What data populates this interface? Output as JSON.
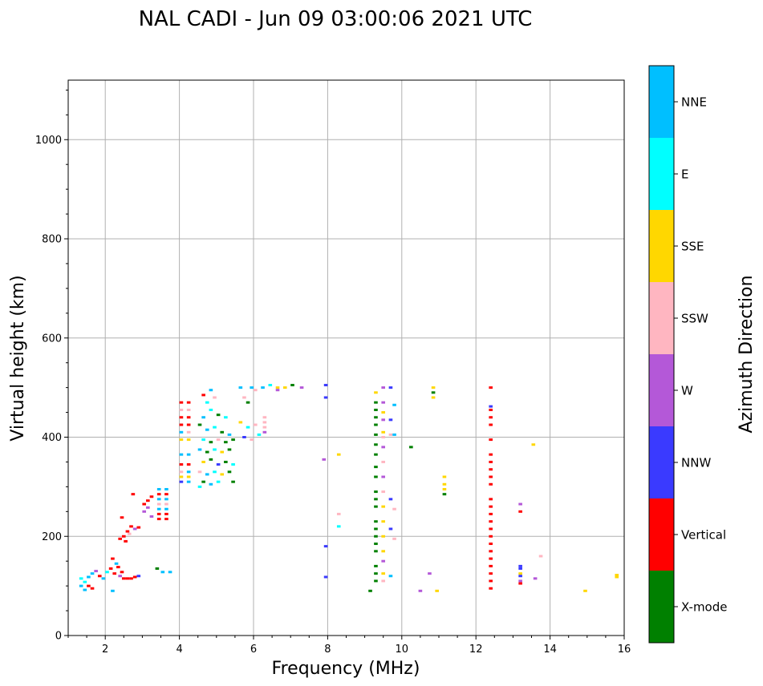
{
  "chart_data": {
    "type": "scatter",
    "title": "NAL CADI - Jun 09 03:00:06 2021 UTC",
    "xlabel": "Frequency (MHz)",
    "ylabel": "Virtual height (km)",
    "xlim": [
      1.0,
      16.0
    ],
    "ylim": [
      0,
      1120
    ],
    "xticks": [
      2,
      4,
      6,
      8,
      10,
      12,
      14,
      16
    ],
    "yticks": [
      0,
      200,
      400,
      600,
      800,
      1000
    ],
    "grid": true,
    "colorbar": {
      "label": "Azimuth Direction",
      "categories": [
        {
          "name": "X-mode",
          "color": "#008000"
        },
        {
          "name": "Vertical",
          "color": "#ff0000"
        },
        {
          "name": "NNW",
          "color": "#3a3aff"
        },
        {
          "name": "W",
          "color": "#b458d8"
        },
        {
          "name": "SSW",
          "color": "#ffb6c1"
        },
        {
          "name": "SSE",
          "color": "#ffd700"
        },
        {
          "name": "E",
          "color": "#00ffff"
        },
        {
          "name": "NNE",
          "color": "#00bfff"
        }
      ]
    },
    "echo_width_mhz": 0.1,
    "echoes": [
      {
        "f": 1.35,
        "h": 115,
        "dir": "E"
      },
      {
        "f": 1.35,
        "h": 100,
        "dir": "NNE"
      },
      {
        "f": 1.45,
        "h": 108,
        "dir": "E"
      },
      {
        "f": 1.45,
        "h": 92,
        "dir": "NNE"
      },
      {
        "f": 1.55,
        "h": 118,
        "dir": "NNE"
      },
      {
        "f": 1.55,
        "h": 100,
        "dir": "Vertical"
      },
      {
        "f": 1.65,
        "h": 125,
        "dir": "NNE"
      },
      {
        "f": 1.65,
        "h": 95,
        "dir": "Vertical"
      },
      {
        "f": 1.75,
        "h": 130,
        "dir": "W"
      },
      {
        "f": 1.85,
        "h": 120,
        "dir": "Vertical"
      },
      {
        "f": 1.95,
        "h": 115,
        "dir": "NNE"
      },
      {
        "f": 2.05,
        "h": 128,
        "dir": "E"
      },
      {
        "f": 2.15,
        "h": 135,
        "dir": "Vertical"
      },
      {
        "f": 2.2,
        "h": 155,
        "dir": "Vertical"
      },
      {
        "f": 2.25,
        "h": 125,
        "dir": "Vertical"
      },
      {
        "f": 2.3,
        "h": 145,
        "dir": "NNE"
      },
      {
        "f": 2.35,
        "h": 138,
        "dir": "Vertical"
      },
      {
        "f": 2.4,
        "h": 120,
        "dir": "W"
      },
      {
        "f": 2.45,
        "h": 128,
        "dir": "Vertical"
      },
      {
        "f": 2.5,
        "h": 115,
        "dir": "Vertical"
      },
      {
        "f": 2.6,
        "h": 115,
        "dir": "Vertical"
      },
      {
        "f": 2.7,
        "h": 115,
        "dir": "Vertical"
      },
      {
        "f": 2.8,
        "h": 118,
        "dir": "Vertical"
      },
      {
        "f": 2.9,
        "h": 120,
        "dir": "NNW"
      },
      {
        "f": 2.2,
        "h": 90,
        "dir": "NNE"
      },
      {
        "f": 2.4,
        "h": 195,
        "dir": "Vertical"
      },
      {
        "f": 2.5,
        "h": 200,
        "dir": "Vertical"
      },
      {
        "f": 2.55,
        "h": 190,
        "dir": "Vertical"
      },
      {
        "f": 2.6,
        "h": 210,
        "dir": "Vertical"
      },
      {
        "f": 2.65,
        "h": 205,
        "dir": "SSW"
      },
      {
        "f": 2.7,
        "h": 220,
        "dir": "Vertical"
      },
      {
        "f": 2.8,
        "h": 215,
        "dir": "W"
      },
      {
        "f": 2.9,
        "h": 218,
        "dir": "Vertical"
      },
      {
        "f": 2.45,
        "h": 238,
        "dir": "Vertical"
      },
      {
        "f": 2.75,
        "h": 285,
        "dir": "Vertical"
      },
      {
        "f": 3.05,
        "h": 250,
        "dir": "W"
      },
      {
        "f": 3.05,
        "h": 265,
        "dir": "Vertical"
      },
      {
        "f": 3.15,
        "h": 258,
        "dir": "W"
      },
      {
        "f": 3.15,
        "h": 272,
        "dir": "Vertical"
      },
      {
        "f": 3.25,
        "h": 240,
        "dir": "W"
      },
      {
        "f": 3.25,
        "h": 280,
        "dir": "Vertical"
      },
      {
        "f": 3.45,
        "h": 295,
        "dir": "NNE"
      },
      {
        "f": 3.45,
        "h": 285,
        "dir": "Vertical"
      },
      {
        "f": 3.45,
        "h": 275,
        "dir": "NNE"
      },
      {
        "f": 3.45,
        "h": 265,
        "dir": "SSW"
      },
      {
        "f": 3.45,
        "h": 255,
        "dir": "NNE"
      },
      {
        "f": 3.45,
        "h": 245,
        "dir": "Vertical"
      },
      {
        "f": 3.45,
        "h": 235,
        "dir": "Vertical"
      },
      {
        "f": 3.65,
        "h": 295,
        "dir": "NNE"
      },
      {
        "f": 3.65,
        "h": 285,
        "dir": "Vertical"
      },
      {
        "f": 3.65,
        "h": 275,
        "dir": "NNE"
      },
      {
        "f": 3.65,
        "h": 265,
        "dir": "SSW"
      },
      {
        "f": 3.65,
        "h": 255,
        "dir": "NNE"
      },
      {
        "f": 3.65,
        "h": 245,
        "dir": "Vertical"
      },
      {
        "f": 3.65,
        "h": 235,
        "dir": "Vertical"
      },
      {
        "f": 3.4,
        "h": 135,
        "dir": "X-mode"
      },
      {
        "f": 3.55,
        "h": 128,
        "dir": "NNE"
      },
      {
        "f": 3.75,
        "h": 128,
        "dir": "NNE"
      },
      {
        "f": 4.05,
        "h": 470,
        "dir": "Vertical"
      },
      {
        "f": 4.25,
        "h": 470,
        "dir": "Vertical"
      },
      {
        "f": 4.05,
        "h": 455,
        "dir": "SSW"
      },
      {
        "f": 4.25,
        "h": 455,
        "dir": "SSW"
      },
      {
        "f": 4.05,
        "h": 440,
        "dir": "Vertical"
      },
      {
        "f": 4.25,
        "h": 440,
        "dir": "Vertical"
      },
      {
        "f": 4.05,
        "h": 425,
        "dir": "Vertical"
      },
      {
        "f": 4.25,
        "h": 425,
        "dir": "Vertical"
      },
      {
        "f": 4.05,
        "h": 410,
        "dir": "NNE"
      },
      {
        "f": 4.25,
        "h": 410,
        "dir": "SSW"
      },
      {
        "f": 4.05,
        "h": 395,
        "dir": "SSE"
      },
      {
        "f": 4.25,
        "h": 395,
        "dir": "SSE"
      },
      {
        "f": 4.05,
        "h": 365,
        "dir": "NNE"
      },
      {
        "f": 4.25,
        "h": 365,
        "dir": "NNE"
      },
      {
        "f": 4.05,
        "h": 345,
        "dir": "Vertical"
      },
      {
        "f": 4.25,
        "h": 345,
        "dir": "Vertical"
      },
      {
        "f": 4.05,
        "h": 330,
        "dir": "SSW"
      },
      {
        "f": 4.25,
        "h": 330,
        "dir": "NNE"
      },
      {
        "f": 4.05,
        "h": 320,
        "dir": "SSE"
      },
      {
        "f": 4.25,
        "h": 320,
        "dir": "SSE"
      },
      {
        "f": 4.05,
        "h": 310,
        "dir": "NNW"
      },
      {
        "f": 4.25,
        "h": 310,
        "dir": "NNE"
      },
      {
        "f": 4.65,
        "h": 485,
        "dir": "Vertical"
      },
      {
        "f": 4.85,
        "h": 495,
        "dir": "NNE"
      },
      {
        "f": 4.75,
        "h": 470,
        "dir": "E"
      },
      {
        "f": 4.95,
        "h": 480,
        "dir": "SSW"
      },
      {
        "f": 4.65,
        "h": 440,
        "dir": "NNE"
      },
      {
        "f": 4.85,
        "h": 455,
        "dir": "E"
      },
      {
        "f": 5.05,
        "h": 445,
        "dir": "X-mode"
      },
      {
        "f": 5.25,
        "h": 440,
        "dir": "E"
      },
      {
        "f": 4.55,
        "h": 425,
        "dir": "X-mode"
      },
      {
        "f": 4.75,
        "h": 415,
        "dir": "NNE"
      },
      {
        "f": 4.95,
        "h": 420,
        "dir": "E"
      },
      {
        "f": 5.15,
        "h": 410,
        "dir": "X-mode"
      },
      {
        "f": 5.35,
        "h": 405,
        "dir": "NNE"
      },
      {
        "f": 4.65,
        "h": 395,
        "dir": "E"
      },
      {
        "f": 4.85,
        "h": 390,
        "dir": "X-mode"
      },
      {
        "f": 5.05,
        "h": 395,
        "dir": "SSW"
      },
      {
        "f": 5.25,
        "h": 390,
        "dir": "X-mode"
      },
      {
        "f": 5.45,
        "h": 395,
        "dir": "X-mode"
      },
      {
        "f": 4.55,
        "h": 375,
        "dir": "NNE"
      },
      {
        "f": 4.75,
        "h": 370,
        "dir": "X-mode"
      },
      {
        "f": 4.95,
        "h": 375,
        "dir": "E"
      },
      {
        "f": 5.15,
        "h": 370,
        "dir": "SSE"
      },
      {
        "f": 5.35,
        "h": 375,
        "dir": "X-mode"
      },
      {
        "f": 4.65,
        "h": 350,
        "dir": "SSE"
      },
      {
        "f": 4.85,
        "h": 355,
        "dir": "X-mode"
      },
      {
        "f": 5.05,
        "h": 345,
        "dir": "NNW"
      },
      {
        "f": 5.25,
        "h": 350,
        "dir": "X-mode"
      },
      {
        "f": 5.45,
        "h": 345,
        "dir": "E"
      },
      {
        "f": 4.55,
        "h": 330,
        "dir": "SSW"
      },
      {
        "f": 4.75,
        "h": 325,
        "dir": "NNE"
      },
      {
        "f": 4.95,
        "h": 330,
        "dir": "E"
      },
      {
        "f": 5.15,
        "h": 325,
        "dir": "SSE"
      },
      {
        "f": 5.35,
        "h": 330,
        "dir": "X-mode"
      },
      {
        "f": 4.65,
        "h": 310,
        "dir": "X-mode"
      },
      {
        "f": 4.85,
        "h": 305,
        "dir": "NNE"
      },
      {
        "f": 5.05,
        "h": 310,
        "dir": "E"
      },
      {
        "f": 5.45,
        "h": 310,
        "dir": "X-mode"
      },
      {
        "f": 4.55,
        "h": 300,
        "dir": "E"
      },
      {
        "f": 5.65,
        "h": 500,
        "dir": "NNE"
      },
      {
        "f": 5.95,
        "h": 500,
        "dir": "NNE"
      },
      {
        "f": 5.75,
        "h": 480,
        "dir": "SSW"
      },
      {
        "f": 5.85,
        "h": 470,
        "dir": "X-mode"
      },
      {
        "f": 6.05,
        "h": 495,
        "dir": "SSW"
      },
      {
        "f": 6.25,
        "h": 500,
        "dir": "NNE"
      },
      {
        "f": 6.45,
        "h": 505,
        "dir": "E"
      },
      {
        "f": 6.65,
        "h": 500,
        "dir": "SSE"
      },
      {
        "f": 6.85,
        "h": 500,
        "dir": "SSE"
      },
      {
        "f": 7.05,
        "h": 505,
        "dir": "X-mode"
      },
      {
        "f": 6.65,
        "h": 495,
        "dir": "W"
      },
      {
        "f": 7.3,
        "h": 500,
        "dir": "W"
      },
      {
        "f": 5.65,
        "h": 430,
        "dir": "SSE"
      },
      {
        "f": 5.85,
        "h": 420,
        "dir": "E"
      },
      {
        "f": 6.05,
        "h": 425,
        "dir": "SSW"
      },
      {
        "f": 6.3,
        "h": 440,
        "dir": "SSW"
      },
      {
        "f": 6.3,
        "h": 430,
        "dir": "SSW"
      },
      {
        "f": 6.3,
        "h": 420,
        "dir": "SSW"
      },
      {
        "f": 6.3,
        "h": 410,
        "dir": "W"
      },
      {
        "f": 5.75,
        "h": 400,
        "dir": "NNW"
      },
      {
        "f": 5.95,
        "h": 395,
        "dir": "SSW"
      },
      {
        "f": 6.15,
        "h": 405,
        "dir": "E"
      },
      {
        "f": 7.95,
        "h": 505,
        "dir": "NNW"
      },
      {
        "f": 7.95,
        "h": 480,
        "dir": "NNW"
      },
      {
        "f": 7.9,
        "h": 355,
        "dir": "W"
      },
      {
        "f": 7.95,
        "h": 180,
        "dir": "NNW"
      },
      {
        "f": 7.95,
        "h": 118,
        "dir": "NNW"
      },
      {
        "f": 8.3,
        "h": 365,
        "dir": "SSE"
      },
      {
        "f": 8.3,
        "h": 245,
        "dir": "SSW"
      },
      {
        "f": 8.3,
        "h": 220,
        "dir": "E"
      },
      {
        "f": 9.3,
        "h": 490,
        "dir": "SSE"
      },
      {
        "f": 9.3,
        "h": 470,
        "dir": "X-mode"
      },
      {
        "f": 9.3,
        "h": 455,
        "dir": "X-mode"
      },
      {
        "f": 9.3,
        "h": 440,
        "dir": "X-mode"
      },
      {
        "f": 9.3,
        "h": 425,
        "dir": "X-mode"
      },
      {
        "f": 9.3,
        "h": 405,
        "dir": "X-mode"
      },
      {
        "f": 9.3,
        "h": 385,
        "dir": "X-mode"
      },
      {
        "f": 9.3,
        "h": 365,
        "dir": "X-mode"
      },
      {
        "f": 9.3,
        "h": 340,
        "dir": "X-mode"
      },
      {
        "f": 9.3,
        "h": 320,
        "dir": "X-mode"
      },
      {
        "f": 9.3,
        "h": 290,
        "dir": "X-mode"
      },
      {
        "f": 9.3,
        "h": 275,
        "dir": "X-mode"
      },
      {
        "f": 9.3,
        "h": 260,
        "dir": "X-mode"
      },
      {
        "f": 9.3,
        "h": 230,
        "dir": "X-mode"
      },
      {
        "f": 9.3,
        "h": 215,
        "dir": "X-mode"
      },
      {
        "f": 9.3,
        "h": 200,
        "dir": "X-mode"
      },
      {
        "f": 9.3,
        "h": 185,
        "dir": "X-mode"
      },
      {
        "f": 9.3,
        "h": 170,
        "dir": "X-mode"
      },
      {
        "f": 9.3,
        "h": 140,
        "dir": "X-mode"
      },
      {
        "f": 9.3,
        "h": 125,
        "dir": "X-mode"
      },
      {
        "f": 9.3,
        "h": 110,
        "dir": "X-mode"
      },
      {
        "f": 9.15,
        "h": 90,
        "dir": "X-mode"
      },
      {
        "f": 9.5,
        "h": 500,
        "dir": "W"
      },
      {
        "f": 9.5,
        "h": 470,
        "dir": "W"
      },
      {
        "f": 9.5,
        "h": 450,
        "dir": "SSE"
      },
      {
        "f": 9.5,
        "h": 435,
        "dir": "W"
      },
      {
        "f": 9.5,
        "h": 410,
        "dir": "SSE"
      },
      {
        "f": 9.5,
        "h": 400,
        "dir": "SSW"
      },
      {
        "f": 9.5,
        "h": 380,
        "dir": "W"
      },
      {
        "f": 9.5,
        "h": 350,
        "dir": "SSW"
      },
      {
        "f": 9.5,
        "h": 320,
        "dir": "W"
      },
      {
        "f": 9.5,
        "h": 290,
        "dir": "SSW"
      },
      {
        "f": 9.5,
        "h": 260,
        "dir": "SSE"
      },
      {
        "f": 9.5,
        "h": 230,
        "dir": "SSE"
      },
      {
        "f": 9.5,
        "h": 200,
        "dir": "SSE"
      },
      {
        "f": 9.5,
        "h": 170,
        "dir": "SSE"
      },
      {
        "f": 9.5,
        "h": 150,
        "dir": "W"
      },
      {
        "f": 9.5,
        "h": 125,
        "dir": "SSE"
      },
      {
        "f": 9.5,
        "h": 110,
        "dir": "SSW"
      },
      {
        "f": 9.7,
        "h": 500,
        "dir": "NNW"
      },
      {
        "f": 9.7,
        "h": 435,
        "dir": "NNW"
      },
      {
        "f": 9.7,
        "h": 405,
        "dir": "SSW"
      },
      {
        "f": 9.7,
        "h": 275,
        "dir": "NNW"
      },
      {
        "f": 9.7,
        "h": 215,
        "dir": "NNW"
      },
      {
        "f": 9.7,
        "h": 120,
        "dir": "NNE"
      },
      {
        "f": 9.8,
        "h": 465,
        "dir": "NNE"
      },
      {
        "f": 9.8,
        "h": 405,
        "dir": "NNE"
      },
      {
        "f": 9.8,
        "h": 255,
        "dir": "SSW"
      },
      {
        "f": 9.8,
        "h": 195,
        "dir": "SSW"
      },
      {
        "f": 10.25,
        "h": 380,
        "dir": "X-mode"
      },
      {
        "f": 10.5,
        "h": 90,
        "dir": "W"
      },
      {
        "f": 10.75,
        "h": 125,
        "dir": "W"
      },
      {
        "f": 10.95,
        "h": 90,
        "dir": "SSE"
      },
      {
        "f": 10.85,
        "h": 500,
        "dir": "SSE"
      },
      {
        "f": 10.85,
        "h": 490,
        "dir": "X-mode"
      },
      {
        "f": 10.85,
        "h": 480,
        "dir": "SSE"
      },
      {
        "f": 11.15,
        "h": 320,
        "dir": "SSE"
      },
      {
        "f": 11.15,
        "h": 305,
        "dir": "SSE"
      },
      {
        "f": 11.15,
        "h": 295,
        "dir": "SSE"
      },
      {
        "f": 11.15,
        "h": 285,
        "dir": "X-mode"
      },
      {
        "f": 12.4,
        "h": 500,
        "dir": "Vertical"
      },
      {
        "f": 12.4,
        "h": 462,
        "dir": "NNW"
      },
      {
        "f": 12.4,
        "h": 455,
        "dir": "Vertical"
      },
      {
        "f": 12.4,
        "h": 440,
        "dir": "Vertical"
      },
      {
        "f": 12.4,
        "h": 425,
        "dir": "Vertical"
      },
      {
        "f": 12.4,
        "h": 395,
        "dir": "Vertical"
      },
      {
        "f": 12.4,
        "h": 365,
        "dir": "Vertical"
      },
      {
        "f": 12.4,
        "h": 350,
        "dir": "Vertical"
      },
      {
        "f": 12.4,
        "h": 335,
        "dir": "Vertical"
      },
      {
        "f": 12.4,
        "h": 320,
        "dir": "Vertical"
      },
      {
        "f": 12.4,
        "h": 305,
        "dir": "Vertical"
      },
      {
        "f": 12.4,
        "h": 275,
        "dir": "Vertical"
      },
      {
        "f": 12.4,
        "h": 260,
        "dir": "Vertical"
      },
      {
        "f": 12.4,
        "h": 245,
        "dir": "Vertical"
      },
      {
        "f": 12.4,
        "h": 230,
        "dir": "Vertical"
      },
      {
        "f": 12.4,
        "h": 215,
        "dir": "Vertical"
      },
      {
        "f": 12.4,
        "h": 200,
        "dir": "Vertical"
      },
      {
        "f": 12.4,
        "h": 185,
        "dir": "Vertical"
      },
      {
        "f": 12.4,
        "h": 170,
        "dir": "Vertical"
      },
      {
        "f": 12.4,
        "h": 155,
        "dir": "Vertical"
      },
      {
        "f": 12.4,
        "h": 140,
        "dir": "Vertical"
      },
      {
        "f": 12.4,
        "h": 125,
        "dir": "Vertical"
      },
      {
        "f": 12.4,
        "h": 110,
        "dir": "Vertical"
      },
      {
        "f": 12.4,
        "h": 95,
        "dir": "Vertical"
      },
      {
        "f": 13.2,
        "h": 265,
        "dir": "W"
      },
      {
        "f": 13.2,
        "h": 250,
        "dir": "Vertical"
      },
      {
        "f": 13.2,
        "h": 140,
        "dir": "NNW"
      },
      {
        "f": 13.2,
        "h": 135,
        "dir": "NNW"
      },
      {
        "f": 13.2,
        "h": 125,
        "dir": "SSE"
      },
      {
        "f": 13.2,
        "h": 120,
        "dir": "NNW"
      },
      {
        "f": 13.2,
        "h": 110,
        "dir": "W"
      },
      {
        "f": 13.2,
        "h": 105,
        "dir": "Vertical"
      },
      {
        "f": 13.6,
        "h": 115,
        "dir": "W"
      },
      {
        "f": 13.55,
        "h": 385,
        "dir": "SSE"
      },
      {
        "f": 13.75,
        "h": 160,
        "dir": "SSW"
      },
      {
        "f": 14.95,
        "h": 90,
        "dir": "SSE"
      },
      {
        "f": 15.8,
        "h": 122,
        "dir": "SSE"
      },
      {
        "f": 15.8,
        "h": 118,
        "dir": "SSE"
      }
    ]
  }
}
